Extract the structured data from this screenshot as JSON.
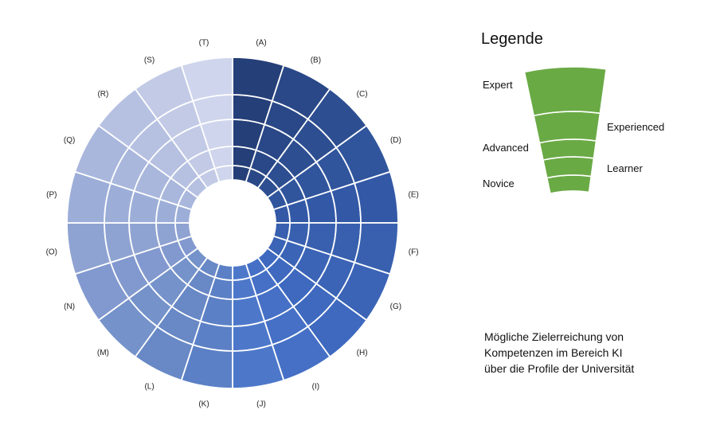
{
  "diagram": {
    "segments": [
      "(A)",
      "(B)",
      "(C)",
      "(D)",
      "(E)",
      "(F)",
      "(G)",
      "(H)",
      "(I)",
      "(J)",
      "(K)",
      "(L)",
      "(M)",
      "(N)",
      "(O)",
      "(P)",
      "(Q)",
      "(R)",
      "(S)",
      "(T)"
    ],
    "levels": [
      "Novice",
      "Learner",
      "Advanced",
      "Experienced",
      "Expert"
    ],
    "colors": [
      "#253f78",
      "#2a4887",
      "#2d4e91",
      "#30559d",
      "#3358a6",
      "#3860ae",
      "#3b64b6",
      "#3e69bf",
      "#4570c6",
      "#4d78ca",
      "#5b80c6",
      "#6888c6",
      "#7593ca",
      "#8299cf",
      "#8fa3d2",
      "#9caed8",
      "#a9b7dd",
      "#b6c1e2",
      "#c2cae6",
      "#cfd5ec"
    ]
  },
  "legend": {
    "title": "Legende",
    "expert": "Expert",
    "experienced": "Experienced",
    "advanced": "Advanced",
    "learner": "Learner",
    "novice": "Novice",
    "color": "#6aaa45"
  },
  "description": {
    "line1": "Mögliche Zielerreichung von",
    "line2": "Kompetenzen im Bereich KI",
    "line3": "über die Profile der Universität"
  }
}
